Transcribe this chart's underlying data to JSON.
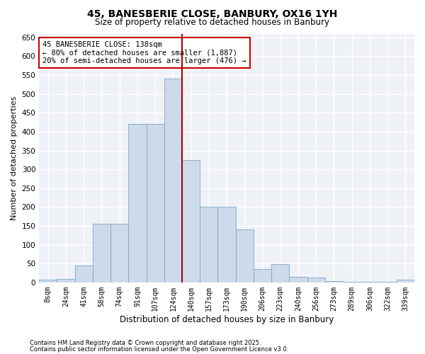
{
  "title": "45, BANESBERIE CLOSE, BANBURY, OX16 1YH",
  "subtitle": "Size of property relative to detached houses in Banbury",
  "xlabel": "Distribution of detached houses by size in Banbury",
  "ylabel": "Number of detached properties",
  "bar_color": "#cddaea",
  "bar_edge_color": "#7ba7c7",
  "vline_color": "#aa0000",
  "categories": [
    "8sqm",
    "24sqm",
    "41sqm",
    "58sqm",
    "74sqm",
    "91sqm",
    "107sqm",
    "124sqm",
    "140sqm",
    "157sqm",
    "173sqm",
    "190sqm",
    "206sqm",
    "223sqm",
    "240sqm",
    "256sqm",
    "273sqm",
    "289sqm",
    "306sqm",
    "322sqm",
    "339sqm"
  ],
  "values": [
    8,
    10,
    45,
    155,
    155,
    420,
    420,
    540,
    325,
    200,
    200,
    140,
    35,
    48,
    15,
    12,
    3,
    2,
    2,
    2,
    8
  ],
  "vline_index": 8,
  "ylim": [
    0,
    660
  ],
  "yticks": [
    0,
    50,
    100,
    150,
    200,
    250,
    300,
    350,
    400,
    450,
    500,
    550,
    600,
    650
  ],
  "annotation_title": "45 BANESBERIE CLOSE: 138sqm",
  "annotation_line1": "← 80% of detached houses are smaller (1,887)",
  "annotation_line2": "20% of semi-detached houses are larger (476) →",
  "annotation_box_color": "#cc0000",
  "footnote1": "Contains HM Land Registry data © Crown copyright and database right 2025.",
  "footnote2": "Contains public sector information licensed under the Open Government Licence v3.0.",
  "bg_color": "#eef2f7"
}
